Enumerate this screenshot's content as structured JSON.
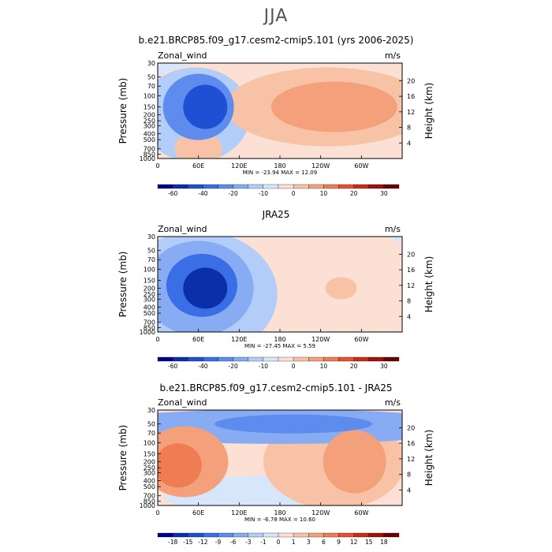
{
  "page": {
    "title": "JJA"
  },
  "colors": {
    "neg": [
      "#00008b",
      "#0b2fa8",
      "#1f4fd2",
      "#3a6ee6",
      "#5e8cee",
      "#87acf3",
      "#b2cdf8",
      "#d8e6fb"
    ],
    "pos": [
      "#fbe0d3",
      "#f8c2a6",
      "#f4a07b",
      "#ef7c52",
      "#e6522e",
      "#cc2c17",
      "#a0110b",
      "#6b0000"
    ],
    "cap": "#000000"
  },
  "chart_data": [
    {
      "type": "heatmap",
      "title": "b.e21.BRCP85.f09_g17.cesm2-cmip5.101 (yrs 2006-2025)",
      "variable": "Zonal_wind",
      "units": "m/s",
      "ylabel": "Pressure (mb)",
      "ylabel_right": "Height (km)",
      "x_ticks": [
        "0",
        "60E",
        "120E",
        "180",
        "120W",
        "60W"
      ],
      "y_ticks": [
        "30",
        "50",
        "70",
        "100",
        "150",
        "200",
        "250",
        "300",
        "400",
        "500",
        "700",
        "850",
        "1000"
      ],
      "y_ticks_right": [
        "20",
        "16",
        "12",
        "8",
        "4"
      ],
      "stats": "MIN = -23.94   MAX =  12.09",
      "colorbar_ticks": [
        "-60",
        "-40",
        "-20",
        "-10",
        "0",
        "10",
        "20",
        "30"
      ],
      "colorbar_bins": 16,
      "field": [
        {
          "x": 70,
          "p": 150,
          "level": -6,
          "sx": 28,
          "sy": 28
        },
        {
          "x": 60,
          "p": 150,
          "level": -4,
          "sx": 45,
          "sy": 42
        },
        {
          "x": 55,
          "p": 200,
          "level": -2,
          "sx": 70,
          "sy": 60
        },
        {
          "x": 90,
          "p": 30,
          "level": -1,
          "sx": 300,
          "sy": 25
        },
        {
          "x": 260,
          "p": 150,
          "level": 3,
          "sx": 80,
          "sy": 32
        },
        {
          "x": 250,
          "p": 150,
          "level": 2,
          "sx": 130,
          "sy": 50
        },
        {
          "x": 210,
          "p": 200,
          "level": 1,
          "sx": 230,
          "sy": 80
        },
        {
          "x": 60,
          "p": 700,
          "level": 2,
          "sx": 30,
          "sy": 22
        },
        {
          "x": 40,
          "p": 400,
          "level": 1,
          "sx": 60,
          "sy": 60
        }
      ]
    },
    {
      "type": "heatmap",
      "title": "JRA25",
      "variable": "Zonal_wind",
      "units": "m/s",
      "ylabel": "Pressure (mb)",
      "ylabel_right": "Height (km)",
      "x_ticks": [
        "0",
        "60E",
        "120E",
        "180",
        "120W",
        "60W"
      ],
      "y_ticks": [
        "30",
        "50",
        "70",
        "100",
        "150",
        "200",
        "250",
        "300",
        "400",
        "500",
        "700",
        "850",
        "1000"
      ],
      "y_ticks_right": [
        "20",
        "16",
        "12",
        "8",
        "4"
      ],
      "stats": "MIN = -27.45   MAX =   5.59",
      "colorbar_ticks": [
        "-60",
        "-40",
        "-20",
        "-10",
        "0",
        "10",
        "20",
        "30"
      ],
      "colorbar_bins": 16,
      "field": [
        {
          "x": 70,
          "p": 200,
          "level": -7,
          "sx": 28,
          "sy": 26
        },
        {
          "x": 65,
          "p": 180,
          "level": -5,
          "sx": 45,
          "sy": 40
        },
        {
          "x": 60,
          "p": 200,
          "level": -3,
          "sx": 70,
          "sy": 60
        },
        {
          "x": 60,
          "p": 250,
          "level": -2,
          "sx": 100,
          "sy": 80
        },
        {
          "x": 150,
          "p": 35,
          "level": -1,
          "sx": 330,
          "sy": 22
        },
        {
          "x": 230,
          "p": 150,
          "level": 1,
          "sx": 150,
          "sy": 70
        },
        {
          "x": 270,
          "p": 200,
          "level": 2,
          "sx": 20,
          "sy": 14
        },
        {
          "x": 40,
          "p": 700,
          "level": 1,
          "sx": 60,
          "sy": 40
        }
      ]
    },
    {
      "type": "heatmap",
      "title": "b.e21.BRCP85.f09_g17.cesm2-cmip5.101 - JRA25",
      "variable": "Zonal_wind",
      "units": "m/s",
      "ylabel": "Pressure (mb)",
      "ylabel_right": "Height (km)",
      "x_ticks": [
        "0",
        "60E",
        "120E",
        "180",
        "120W",
        "60W"
      ],
      "y_ticks": [
        "30",
        "50",
        "70",
        "100",
        "150",
        "200",
        "250",
        "300",
        "400",
        "500",
        "700",
        "850",
        "1000"
      ],
      "y_ticks_right": [
        "20",
        "16",
        "12",
        "8",
        "4"
      ],
      "stats": "MIN =  -6.78   MAX =  10.60",
      "colorbar_ticks": [
        "-18",
        "-15",
        "-12",
        "-9",
        "-6",
        "-3",
        "-1",
        "0",
        "1",
        "3",
        "6",
        "9",
        "12",
        "15",
        "18"
      ],
      "colorbar_bins": 16,
      "field": [
        {
          "x": 200,
          "p": 50,
          "level": -4,
          "sx": 100,
          "sy": 12
        },
        {
          "x": 180,
          "p": 55,
          "level": -3,
          "sx": 250,
          "sy": 22
        },
        {
          "x": 30,
          "p": 230,
          "level": 4,
          "sx": 30,
          "sy": 28
        },
        {
          "x": 40,
          "p": 200,
          "level": 3,
          "sx": 55,
          "sy": 45
        },
        {
          "x": 290,
          "p": 200,
          "level": 3,
          "sx": 40,
          "sy": 40
        },
        {
          "x": 260,
          "p": 200,
          "level": 2,
          "sx": 90,
          "sy": 60
        },
        {
          "x": 90,
          "p": 300,
          "level": 1,
          "sx": 140,
          "sy": 80
        },
        {
          "x": 150,
          "p": 700,
          "level": -1,
          "sx": 120,
          "sy": 25
        },
        {
          "x": 10,
          "p": 350,
          "level": -1,
          "sx": 10,
          "sy": 20
        }
      ]
    }
  ]
}
